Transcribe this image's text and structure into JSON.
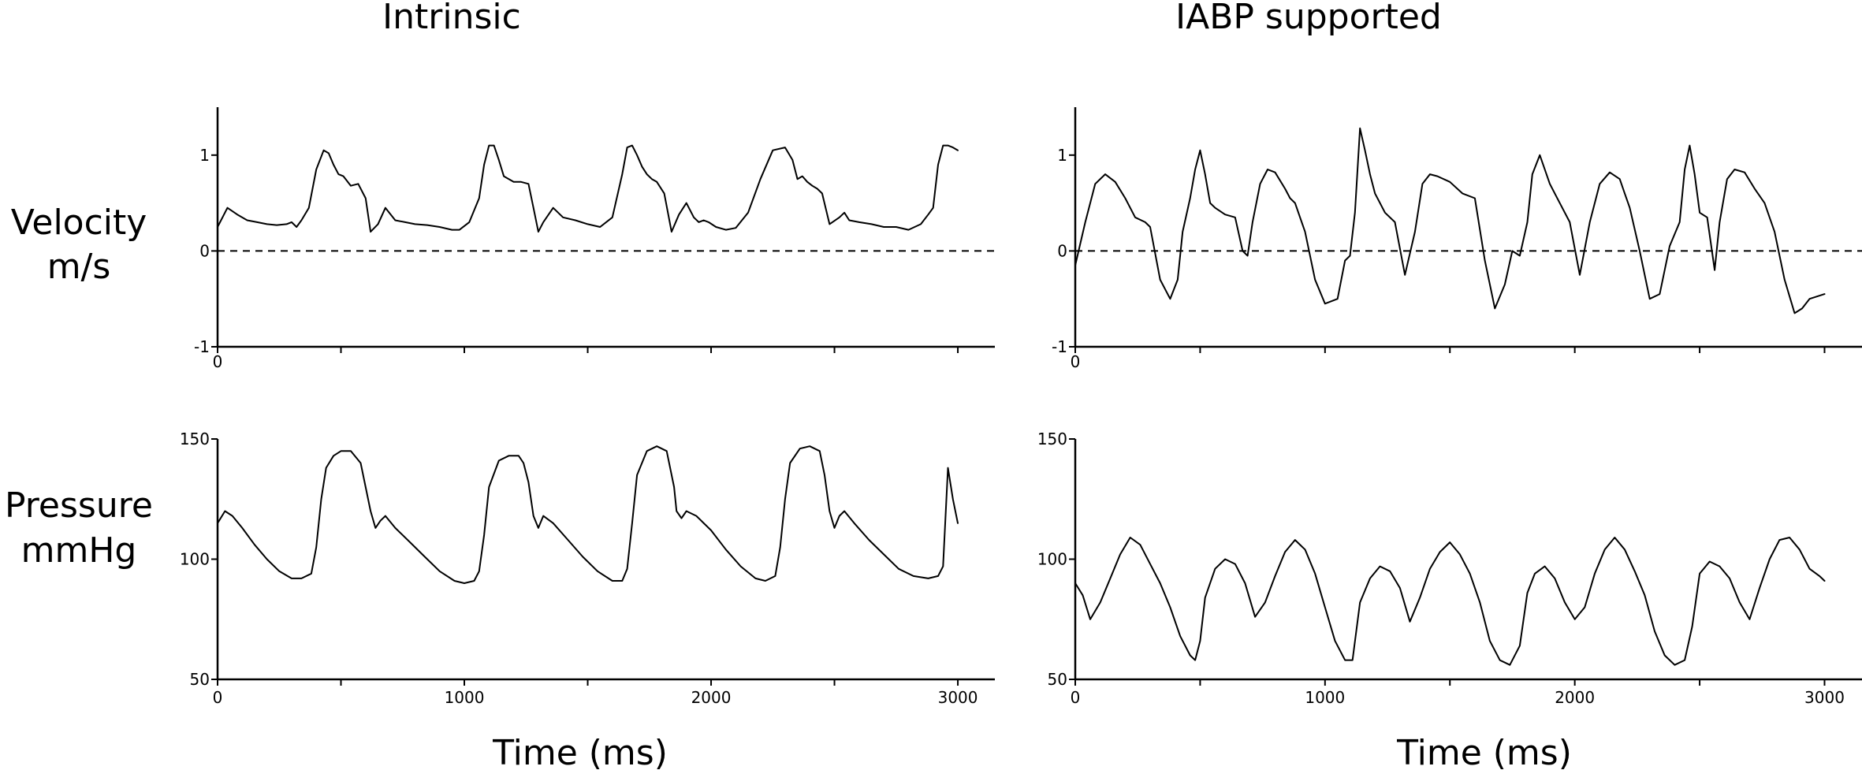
{
  "figure": {
    "columns": [
      "Intrinsic",
      "IABP supported"
    ],
    "rows": [
      {
        "label_lines": [
          "Velocity",
          "m/s"
        ]
      },
      {
        "label_lines": [
          "Pressure",
          "mmHg"
        ]
      }
    ],
    "xlabel": "Time (ms)"
  },
  "chart_data": [
    {
      "type": "line",
      "title": "Intrinsic",
      "ylabel": "Velocity m/s",
      "xlabel": "",
      "xlim": [
        0,
        3150
      ],
      "ylim": [
        -1,
        1.5
      ],
      "yticks": [
        -1,
        0,
        1
      ],
      "xtick_labels": [
        "0"
      ],
      "reference_line": {
        "y": 0,
        "style": "dashed"
      },
      "series": [
        {
          "x": [
            0,
            40,
            80,
            120,
            160,
            200,
            240,
            280,
            300,
            320,
            340,
            370,
            400,
            430,
            450,
            470,
            490,
            510,
            540,
            570,
            600,
            620,
            650,
            680,
            720,
            760,
            800,
            850,
            900,
            950,
            980,
            1020,
            1060,
            1080,
            1100,
            1120,
            1140,
            1160,
            1200,
            1230,
            1260,
            1280,
            1300,
            1320,
            1360,
            1400,
            1450,
            1500,
            1550,
            1600,
            1640,
            1660,
            1680,
            1700,
            1720,
            1740,
            1760,
            1780,
            1810,
            1840,
            1870,
            1900,
            1930,
            1950,
            1970,
            1990,
            2020,
            2060,
            2100,
            2150,
            2200,
            2250,
            2300,
            2330,
            2350,
            2370,
            2390,
            2410,
            2430,
            2450,
            2480,
            2520,
            2540,
            2560,
            2600,
            2650,
            2700,
            2750,
            2800,
            2850,
            2880,
            2900,
            2920,
            2940,
            2960,
            2980,
            3000
          ],
          "y": [
            0.25,
            0.45,
            0.38,
            0.32,
            0.3,
            0.28,
            0.27,
            0.28,
            0.3,
            0.25,
            0.32,
            0.45,
            0.85,
            1.05,
            1.02,
            0.9,
            0.8,
            0.78,
            0.68,
            0.7,
            0.55,
            0.2,
            0.28,
            0.45,
            0.32,
            0.3,
            0.28,
            0.27,
            0.25,
            0.22,
            0.22,
            0.3,
            0.55,
            0.9,
            1.1,
            1.1,
            0.95,
            0.78,
            0.72,
            0.72,
            0.7,
            0.45,
            0.2,
            0.3,
            0.45,
            0.35,
            0.32,
            0.28,
            0.25,
            0.35,
            0.8,
            1.08,
            1.1,
            1.0,
            0.88,
            0.8,
            0.75,
            0.72,
            0.6,
            0.2,
            0.38,
            0.5,
            0.35,
            0.3,
            0.32,
            0.3,
            0.25,
            0.22,
            0.24,
            0.4,
            0.75,
            1.05,
            1.08,
            0.95,
            0.75,
            0.78,
            0.72,
            0.68,
            0.65,
            0.6,
            0.28,
            0.35,
            0.4,
            0.32,
            0.3,
            0.28,
            0.25,
            0.25,
            0.22,
            0.28,
            0.38,
            0.45,
            0.9,
            1.1,
            1.1,
            1.08,
            1.05
          ]
        }
      ]
    },
    {
      "type": "line",
      "title": "IABP supported",
      "ylabel": "Velocity m/s",
      "xlabel": "",
      "xlim": [
        0,
        3150
      ],
      "ylim": [
        -1,
        1.5
      ],
      "yticks": [
        -1,
        0,
        1
      ],
      "xtick_labels": [
        "0"
      ],
      "reference_line": {
        "y": 0,
        "style": "dashed"
      },
      "series": [
        {
          "x": [
            0,
            40,
            80,
            120,
            160,
            200,
            240,
            280,
            300,
            340,
            380,
            410,
            430,
            460,
            480,
            500,
            520,
            540,
            560,
            600,
            640,
            670,
            690,
            710,
            740,
            770,
            800,
            840,
            860,
            880,
            920,
            960,
            1000,
            1050,
            1080,
            1100,
            1120,
            1140,
            1160,
            1180,
            1200,
            1240,
            1280,
            1320,
            1360,
            1390,
            1420,
            1450,
            1500,
            1550,
            1600,
            1640,
            1680,
            1720,
            1750,
            1780,
            1810,
            1830,
            1860,
            1900,
            1940,
            1980,
            2020,
            2060,
            2100,
            2140,
            2180,
            2200,
            2220,
            2260,
            2300,
            2340,
            2380,
            2420,
            2440,
            2460,
            2480,
            2500,
            2530,
            2560,
            2580,
            2610,
            2640,
            2680,
            2720,
            2760,
            2800,
            2840,
            2880,
            2910,
            2940,
            3000
          ],
          "y": [
            -0.15,
            0.3,
            0.7,
            0.8,
            0.72,
            0.55,
            0.35,
            0.3,
            0.25,
            -0.3,
            -0.5,
            -0.3,
            0.2,
            0.55,
            0.85,
            1.05,
            0.8,
            0.5,
            0.45,
            0.38,
            0.35,
            0.0,
            -0.05,
            0.3,
            0.7,
            0.85,
            0.82,
            0.65,
            0.55,
            0.5,
            0.2,
            -0.3,
            -0.55,
            -0.5,
            -0.1,
            -0.05,
            0.4,
            1.28,
            1.05,
            0.8,
            0.6,
            0.4,
            0.3,
            -0.25,
            0.2,
            0.7,
            0.8,
            0.78,
            0.72,
            0.6,
            0.55,
            -0.1,
            -0.6,
            -0.35,
            0.0,
            -0.05,
            0.3,
            0.8,
            1.0,
            0.7,
            0.5,
            0.3,
            -0.25,
            0.3,
            0.7,
            0.82,
            0.75,
            0.6,
            0.45,
            0.0,
            -0.5,
            -0.45,
            0.05,
            0.3,
            0.85,
            1.1,
            0.8,
            0.4,
            0.35,
            -0.2,
            0.3,
            0.75,
            0.85,
            0.82,
            0.65,
            0.5,
            0.2,
            -0.3,
            -0.65,
            -0.6,
            -0.5,
            -0.45
          ]
        }
      ]
    },
    {
      "type": "line",
      "title": "",
      "ylabel": "Pressure mmHg",
      "xlabel": "Time (ms)",
      "xlim": [
        0,
        3150
      ],
      "ylim": [
        50,
        150
      ],
      "yticks": [
        50,
        100,
        150
      ],
      "xticks": [
        0,
        1000,
        2000,
        3000
      ],
      "series": [
        {
          "x": [
            0,
            30,
            60,
            100,
            150,
            200,
            250,
            300,
            340,
            380,
            400,
            420,
            440,
            470,
            500,
            540,
            580,
            600,
            620,
            640,
            660,
            680,
            720,
            780,
            840,
            900,
            960,
            1000,
            1040,
            1060,
            1080,
            1100,
            1140,
            1180,
            1220,
            1240,
            1260,
            1280,
            1300,
            1320,
            1360,
            1420,
            1480,
            1540,
            1600,
            1640,
            1660,
            1680,
            1700,
            1740,
            1780,
            1820,
            1850,
            1860,
            1880,
            1900,
            1940,
            2000,
            2060,
            2120,
            2180,
            2220,
            2260,
            2280,
            2300,
            2320,
            2360,
            2400,
            2440,
            2460,
            2480,
            2500,
            2520,
            2540,
            2580,
            2640,
            2700,
            2760,
            2820,
            2880,
            2920,
            2940,
            2960,
            2980,
            3000
          ],
          "y": [
            115,
            120,
            118,
            113,
            106,
            100,
            95,
            92,
            92,
            94,
            105,
            125,
            138,
            143,
            145,
            145,
            140,
            130,
            120,
            113,
            116,
            118,
            113,
            107,
            101,
            95,
            91,
            90,
            91,
            95,
            110,
            130,
            141,
            143,
            143,
            140,
            132,
            118,
            113,
            118,
            115,
            108,
            101,
            95,
            91,
            91,
            96,
            115,
            135,
            145,
            147,
            145,
            130,
            120,
            117,
            120,
            118,
            112,
            104,
            97,
            92,
            91,
            93,
            105,
            125,
            140,
            146,
            147,
            145,
            135,
            120,
            113,
            118,
            120,
            115,
            108,
            102,
            96,
            93,
            92,
            93,
            97,
            138,
            125,
            115
          ]
        }
      ]
    },
    {
      "type": "line",
      "title": "",
      "ylabel": "Pressure mmHg",
      "xlabel": "Time (ms)",
      "xlim": [
        0,
        3150
      ],
      "ylim": [
        50,
        150
      ],
      "yticks": [
        50,
        100,
        150
      ],
      "xticks": [
        0,
        1000,
        2000,
        3000
      ],
      "series": [
        {
          "x": [
            0,
            30,
            60,
            100,
            140,
            180,
            220,
            260,
            300,
            340,
            380,
            420,
            460,
            480,
            500,
            520,
            560,
            600,
            640,
            680,
            720,
            760,
            800,
            840,
            880,
            920,
            960,
            1000,
            1040,
            1080,
            1110,
            1140,
            1180,
            1220,
            1260,
            1300,
            1340,
            1380,
            1420,
            1460,
            1500,
            1540,
            1580,
            1620,
            1660,
            1700,
            1740,
            1780,
            1810,
            1840,
            1880,
            1920,
            1960,
            2000,
            2040,
            2080,
            2120,
            2160,
            2200,
            2240,
            2280,
            2320,
            2360,
            2400,
            2440,
            2470,
            2500,
            2540,
            2580,
            2620,
            2660,
            2700,
            2740,
            2780,
            2820,
            2860,
            2900,
            2940,
            2980,
            3000
          ],
          "y": [
            90,
            85,
            75,
            82,
            92,
            102,
            109,
            106,
            98,
            90,
            80,
            68,
            60,
            58,
            66,
            84,
            96,
            100,
            98,
            90,
            76,
            82,
            93,
            103,
            108,
            104,
            94,
            80,
            66,
            58,
            58,
            82,
            92,
            97,
            95,
            88,
            74,
            84,
            96,
            103,
            107,
            102,
            94,
            82,
            66,
            58,
            56,
            64,
            86,
            94,
            97,
            92,
            82,
            75,
            80,
            94,
            104,
            109,
            104,
            95,
            85,
            70,
            60,
            56,
            58,
            72,
            94,
            99,
            97,
            92,
            82,
            75,
            88,
            100,
            108,
            109,
            104,
            96,
            93,
            91
          ]
        }
      ]
    }
  ]
}
